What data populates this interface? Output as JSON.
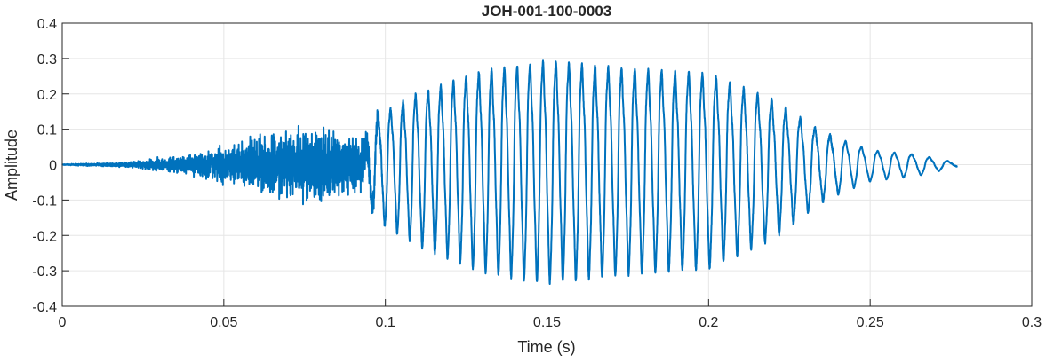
{
  "chart_data": {
    "type": "line",
    "title": "JOH-001-100-0003",
    "xlabel": "Time (s)",
    "ylabel": "Amplitude",
    "xlim": [
      0,
      0.3
    ],
    "ylim": [
      -0.4,
      0.4
    ],
    "xticks": [
      0,
      0.05,
      0.1,
      0.15,
      0.2,
      0.25,
      0.3
    ],
    "xtick_labels": [
      "0",
      "0.05",
      "0.1",
      "0.15",
      "0.2",
      "0.25",
      "0.3"
    ],
    "yticks": [
      -0.4,
      -0.3,
      -0.2,
      -0.1,
      0,
      0.1,
      0.2,
      0.3,
      0.4
    ],
    "ytick_labels": [
      "-0.4",
      "-0.3",
      "-0.2",
      "-0.1",
      "0",
      "0.1",
      "0.2",
      "0.3",
      "0.4"
    ],
    "grid": true,
    "color": "#0072BD",
    "signal_end_time": 0.277,
    "noise_envelope": {
      "t": [
        0,
        0.02,
        0.045,
        0.06,
        0.08,
        0.095,
        0.1
      ],
      "amp": [
        0.001,
        0.005,
        0.03,
        0.06,
        0.08,
        0.05,
        0
      ]
    },
    "voiced_envelope": {
      "t": [
        0.093,
        0.097,
        0.11,
        0.13,
        0.15,
        0.17,
        0.2,
        0.22,
        0.235,
        0.25,
        0.265,
        0.277
      ],
      "amp": [
        0.02,
        0.15,
        0.22,
        0.29,
        0.32,
        0.3,
        0.28,
        0.2,
        0.1,
        0.045,
        0.03,
        0.005
      ]
    },
    "voiced_frequency_hz": {
      "t": [
        0.095,
        0.15,
        0.22,
        0.277
      ],
      "f": [
        260,
        250,
        230,
        170
      ]
    }
  }
}
